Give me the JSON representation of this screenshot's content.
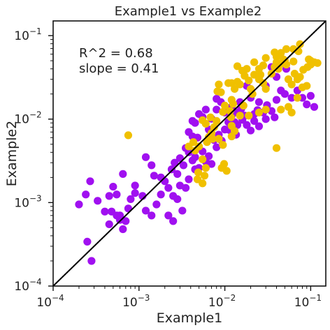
{
  "chart_data": {
    "type": "scatter",
    "title": "Example1 vs Example2",
    "xlabel": "Example1",
    "ylabel": "Example2",
    "xscale": "log",
    "yscale": "log",
    "xlim": [
      0.0001,
      0.15
    ],
    "ylim": [
      0.0001,
      0.15
    ],
    "grid": false,
    "ticks": [
      {
        "value": 0.0001,
        "base": "10",
        "exp": "−4"
      },
      {
        "value": 0.001,
        "base": "10",
        "exp": "−3"
      },
      {
        "value": 0.01,
        "base": "10",
        "exp": "−2"
      },
      {
        "value": 0.1,
        "base": "10",
        "exp": "−1"
      }
    ],
    "reference_line": {
      "style": "identity",
      "color": "#000000"
    },
    "annotations": [
      "R^2 = 0.68",
      "slope = 0.41"
    ],
    "series": [
      {
        "color": "#a010f0",
        "points": [
          [
            0.00028,
            0.0002
          ],
          [
            0.00025,
            0.00034
          ],
          [
            0.0002,
            0.00095
          ],
          [
            0.00024,
            0.00125
          ],
          [
            0.00033,
            0.00105
          ],
          [
            0.00027,
            0.0018
          ],
          [
            0.0004,
            0.00078
          ],
          [
            0.00045,
            0.00055
          ],
          [
            0.00048,
            0.00078
          ],
          [
            0.00055,
            0.0007
          ],
          [
            0.0006,
            0.00062
          ],
          [
            0.00065,
            0.00048
          ],
          [
            0.00045,
            0.0012
          ],
          [
            0.0005,
            0.00155
          ],
          [
            0.00055,
            0.00125
          ],
          [
            0.0006,
            0.0007
          ],
          [
            0.0007,
            0.0006
          ],
          [
            0.00075,
            0.00085
          ],
          [
            0.0008,
            0.0011
          ],
          [
            0.0009,
            0.0013
          ],
          [
            0.00065,
            0.0022
          ],
          [
            0.0009,
            0.0016
          ],
          [
            0.0011,
            0.0012
          ],
          [
            0.0012,
            0.0008
          ],
          [
            0.0014,
            0.0007
          ],
          [
            0.0016,
            0.00095
          ],
          [
            0.0018,
            0.00125
          ],
          [
            0.0012,
            0.0035
          ],
          [
            0.0014,
            0.0028
          ],
          [
            0.0015,
            0.0021
          ],
          [
            0.0018,
            0.002
          ],
          [
            0.002,
            0.0018
          ],
          [
            0.0022,
            0.0015
          ],
          [
            0.0025,
            0.0012
          ],
          [
            0.0028,
            0.0011
          ],
          [
            0.0025,
            0.0006
          ],
          [
            0.0022,
            0.0007
          ],
          [
            0.003,
            0.0016
          ],
          [
            0.0028,
            0.0022
          ],
          [
            0.0024,
            0.0025
          ],
          [
            0.0026,
            0.003
          ],
          [
            0.003,
            0.0034
          ],
          [
            0.0033,
            0.0028
          ],
          [
            0.0035,
            0.0045
          ],
          [
            0.0038,
            0.004
          ],
          [
            0.0042,
            0.0032
          ],
          [
            0.0045,
            0.0025
          ],
          [
            0.005,
            0.0026
          ],
          [
            0.0035,
            0.0015
          ],
          [
            0.0032,
            0.0008
          ],
          [
            0.0038,
            0.0019
          ],
          [
            0.0042,
            0.0062
          ],
          [
            0.0048,
            0.006
          ],
          [
            0.0055,
            0.0041
          ],
          [
            0.006,
            0.0031
          ],
          [
            0.0065,
            0.0036
          ],
          [
            0.007,
            0.0029
          ],
          [
            0.0075,
            0.0056
          ],
          [
            0.008,
            0.0046
          ],
          [
            0.0085,
            0.0065
          ],
          [
            0.0092,
            0.0055
          ],
          [
            0.01,
            0.0075
          ],
          [
            0.011,
            0.0092
          ],
          [
            0.012,
            0.007
          ],
          [
            0.013,
            0.0092
          ],
          [
            0.014,
            0.0085
          ],
          [
            0.0045,
            0.009
          ],
          [
            0.0055,
            0.0106
          ],
          [
            0.006,
            0.013
          ],
          [
            0.0065,
            0.0075
          ],
          [
            0.007,
            0.0101
          ],
          [
            0.008,
            0.013
          ],
          [
            0.009,
            0.016
          ],
          [
            0.01,
            0.012
          ],
          [
            0.011,
            0.0075
          ],
          [
            0.012,
            0.014
          ],
          [
            0.014,
            0.012
          ],
          [
            0.015,
            0.016
          ],
          [
            0.017,
            0.011
          ],
          [
            0.018,
            0.0085
          ],
          [
            0.02,
            0.0073
          ],
          [
            0.022,
            0.0095
          ],
          [
            0.025,
            0.0082
          ],
          [
            0.028,
            0.012
          ],
          [
            0.03,
            0.01
          ],
          [
            0.035,
            0.0125
          ],
          [
            0.038,
            0.0105
          ],
          [
            0.04,
            0.017
          ],
          [
            0.045,
            0.022
          ],
          [
            0.05,
            0.02
          ],
          [
            0.06,
            0.018
          ],
          [
            0.07,
            0.022
          ],
          [
            0.08,
            0.018
          ],
          [
            0.09,
            0.015
          ],
          [
            0.1,
            0.019
          ],
          [
            0.11,
            0.014
          ],
          [
            0.052,
            0.04
          ],
          [
            0.035,
            0.042
          ],
          [
            0.04,
            0.032
          ],
          [
            0.018,
            0.025
          ],
          [
            0.02,
            0.018
          ],
          [
            0.03,
            0.025
          ],
          [
            0.025,
            0.016
          ],
          [
            0.0042,
            0.0095
          ],
          [
            0.005,
            0.0115
          ],
          [
            0.0038,
            0.007
          ],
          [
            0.008,
            0.0175
          ],
          [
            0.012,
            0.011
          ],
          [
            0.0155,
            0.0132
          ],
          [
            0.016,
            0.0098
          ],
          [
            0.022,
            0.0115
          ],
          [
            0.024,
            0.0128
          ],
          [
            0.031,
            0.0147
          ],
          [
            0.0135,
            0.0065
          ],
          [
            0.0045,
            0.0035
          ]
        ]
      },
      {
        "color": "#f0c000",
        "points": [
          [
            0.00075,
            0.0064
          ],
          [
            0.0038,
            0.0047
          ],
          [
            0.0043,
            0.0053
          ],
          [
            0.005,
            0.0047
          ],
          [
            0.0045,
            0.0042
          ],
          [
            0.0055,
            0.0033
          ],
          [
            0.006,
            0.0026
          ],
          [
            0.0058,
            0.0021
          ],
          [
            0.0055,
            0.0017
          ],
          [
            0.0049,
            0.0023
          ],
          [
            0.0065,
            0.0061
          ],
          [
            0.007,
            0.0068
          ],
          [
            0.0075,
            0.008
          ],
          [
            0.0055,
            0.0097
          ],
          [
            0.006,
            0.0088
          ],
          [
            0.0068,
            0.0105
          ],
          [
            0.008,
            0.0095
          ],
          [
            0.0085,
            0.0058
          ],
          [
            0.0095,
            0.0049
          ],
          [
            0.0092,
            0.0026
          ],
          [
            0.0098,
            0.0029
          ],
          [
            0.0105,
            0.0024
          ],
          [
            0.012,
            0.0062
          ],
          [
            0.013,
            0.0072
          ],
          [
            0.0095,
            0.0122
          ],
          [
            0.01,
            0.0145
          ],
          [
            0.0115,
            0.0125
          ],
          [
            0.012,
            0.017
          ],
          [
            0.0125,
            0.0152
          ],
          [
            0.013,
            0.023
          ],
          [
            0.012,
            0.027
          ],
          [
            0.011,
            0.027
          ],
          [
            0.009,
            0.021
          ],
          [
            0.0082,
            0.0215
          ],
          [
            0.0085,
            0.026
          ],
          [
            0.014,
            0.028
          ],
          [
            0.015,
            0.026
          ],
          [
            0.017,
            0.033
          ],
          [
            0.019,
            0.029
          ],
          [
            0.02,
            0.023
          ],
          [
            0.021,
            0.02
          ],
          [
            0.022,
            0.034
          ],
          [
            0.025,
            0.03
          ],
          [
            0.026,
            0.034
          ],
          [
            0.028,
            0.027
          ],
          [
            0.03,
            0.023
          ],
          [
            0.035,
            0.035
          ],
          [
            0.038,
            0.042
          ],
          [
            0.04,
            0.048
          ],
          [
            0.042,
            0.04
          ],
          [
            0.045,
            0.046
          ],
          [
            0.048,
            0.052
          ],
          [
            0.05,
            0.05
          ],
          [
            0.052,
            0.045
          ],
          [
            0.055,
            0.03
          ],
          [
            0.06,
            0.026
          ],
          [
            0.065,
            0.035
          ],
          [
            0.07,
            0.03
          ],
          [
            0.075,
            0.032
          ],
          [
            0.08,
            0.024
          ],
          [
            0.09,
            0.025
          ],
          [
            0.1,
            0.045
          ],
          [
            0.11,
            0.048
          ],
          [
            0.1,
            0.05
          ],
          [
            0.12,
            0.047
          ],
          [
            0.095,
            0.052
          ],
          [
            0.092,
            0.042
          ],
          [
            0.082,
            0.039
          ],
          [
            0.063,
            0.049
          ],
          [
            0.072,
            0.065
          ],
          [
            0.075,
            0.079
          ],
          [
            0.063,
            0.069
          ],
          [
            0.052,
            0.069
          ],
          [
            0.038,
            0.063
          ],
          [
            0.04,
            0.056
          ],
          [
            0.045,
            0.062
          ],
          [
            0.03,
            0.054
          ],
          [
            0.028,
            0.044
          ],
          [
            0.022,
            0.048
          ],
          [
            0.025,
            0.04
          ],
          [
            0.018,
            0.04
          ],
          [
            0.016,
            0.038
          ],
          [
            0.014,
            0.043
          ],
          [
            0.019,
            0.011
          ],
          [
            0.015,
            0.011
          ],
          [
            0.04,
            0.0045
          ],
          [
            0.045,
            0.013
          ],
          [
            0.055,
            0.014
          ],
          [
            0.06,
            0.012
          ],
          [
            0.07,
            0.018
          ],
          [
            0.03,
            0.013
          ],
          [
            0.025,
            0.012
          ],
          [
            0.012,
            0.0083
          ],
          [
            0.0165,
            0.0145
          ],
          [
            0.0118,
            0.0105
          ],
          [
            0.0072,
            0.0058
          ],
          [
            0.0062,
            0.0053
          ],
          [
            0.0048,
            0.0019
          ]
        ]
      }
    ]
  }
}
